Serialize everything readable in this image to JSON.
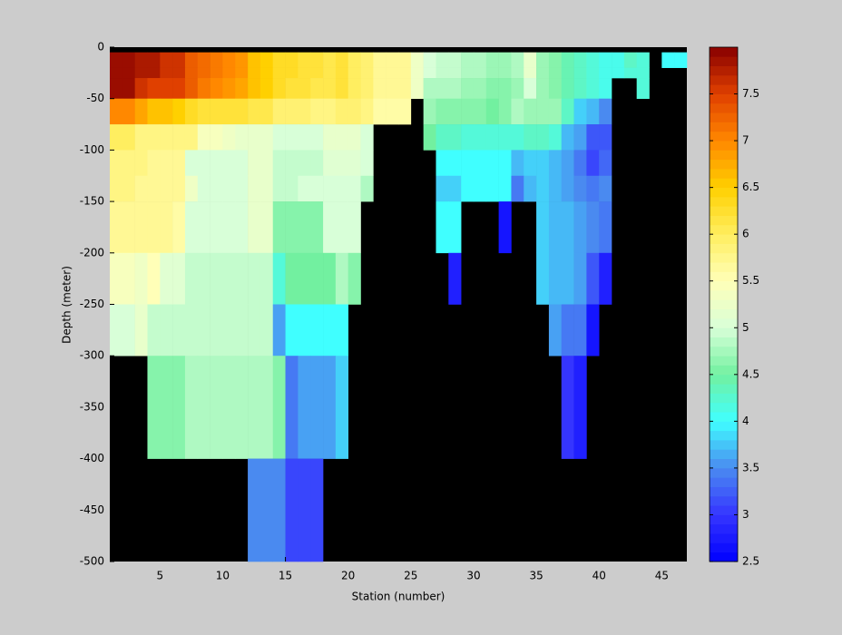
{
  "chart_data": {
    "type": "heatmap",
    "xlabel": "Station (number)",
    "ylabel": "Depth (meter)",
    "xlim": [
      1,
      47
    ],
    "ylim": [
      -500,
      0
    ],
    "xticks": [
      5,
      10,
      15,
      20,
      25,
      30,
      35,
      40,
      45
    ],
    "yticks": [
      0,
      -50,
      -100,
      -150,
      -200,
      -250,
      -300,
      -350,
      -400,
      -450,
      -500
    ],
    "x_edges": [
      1,
      2,
      3,
      4,
      5,
      6,
      7,
      8,
      9,
      10,
      11,
      12,
      13,
      14,
      15,
      16,
      17,
      18,
      19,
      20,
      21,
      22,
      23,
      24,
      25,
      26,
      27,
      28,
      29,
      30,
      31,
      32,
      33,
      34,
      35,
      36,
      37,
      38,
      39,
      40,
      41,
      42,
      43,
      44,
      45,
      46,
      47
    ],
    "depth_edges": [
      -5,
      -20,
      -30,
      -50,
      -75,
      -100,
      -125,
      -150,
      -200,
      -250,
      -300,
      -400,
      -500
    ],
    "z": [
      [
        7.9,
        7.9,
        7.8,
        7.8,
        7.6,
        7.6,
        7.3,
        7.2,
        7.1,
        7.0,
        6.9,
        6.6,
        6.5,
        6.3,
        6.3,
        6.2,
        6.2,
        6.1,
        6.2,
        6.0,
        5.9,
        5.7,
        5.7,
        5.7,
        5.3,
        5.0,
        4.9,
        4.9,
        4.8,
        4.8,
        4.7,
        4.7,
        4.8,
        5.2,
        4.7,
        4.6,
        4.4,
        4.3,
        4.2,
        4.1,
        4.1,
        4.3,
        4.2,
        null,
        4.0,
        4.0
      ],
      [
        7.9,
        7.9,
        7.8,
        7.8,
        7.6,
        7.6,
        7.3,
        7.2,
        7.1,
        7.0,
        6.9,
        6.6,
        6.5,
        6.3,
        6.3,
        6.2,
        6.2,
        6.1,
        6.2,
        6.0,
        5.9,
        5.7,
        5.7,
        5.7,
        5.3,
        5.0,
        4.9,
        4.9,
        4.8,
        4.8,
        4.7,
        4.7,
        4.8,
        5.2,
        4.7,
        4.6,
        4.4,
        4.3,
        4.2,
        4.1,
        4.1,
        4.2,
        4.2,
        null,
        null,
        null
      ],
      [
        7.9,
        7.9,
        7.6,
        7.5,
        7.5,
        7.5,
        7.3,
        7.1,
        7.0,
        6.9,
        6.8,
        6.6,
        6.5,
        6.3,
        6.2,
        6.2,
        6.1,
        6.1,
        6.2,
        6.0,
        5.9,
        5.7,
        5.7,
        5.7,
        5.3,
        4.8,
        4.8,
        4.8,
        4.7,
        4.7,
        4.6,
        4.6,
        4.7,
        5.0,
        4.7,
        4.6,
        4.4,
        4.3,
        4.2,
        4.1,
        null,
        null,
        4.2,
        null,
        null,
        null
      ],
      [
        7.0,
        7.0,
        6.8,
        6.6,
        6.6,
        6.5,
        6.3,
        6.2,
        6.2,
        6.2,
        6.2,
        6.1,
        6.1,
        5.9,
        5.9,
        5.9,
        5.8,
        5.8,
        5.9,
        5.9,
        5.8,
        5.6,
        5.6,
        5.6,
        null,
        4.7,
        4.6,
        4.6,
        4.6,
        4.6,
        4.5,
        4.6,
        4.8,
        4.7,
        4.7,
        4.7,
        4.3,
        3.8,
        3.7,
        3.5,
        null,
        null,
        null,
        null,
        null,
        null
      ],
      [
        6.0,
        6.0,
        5.8,
        5.8,
        5.8,
        5.8,
        5.8,
        5.4,
        5.4,
        5.3,
        5.2,
        5.2,
        5.2,
        5.0,
        5.0,
        5.0,
        5.0,
        5.2,
        5.2,
        5.2,
        5.0,
        null,
        null,
        null,
        null,
        4.5,
        4.3,
        4.3,
        4.2,
        4.2,
        4.2,
        4.2,
        4.2,
        4.3,
        4.3,
        4.2,
        3.7,
        3.6,
        3.2,
        3.2,
        null,
        null,
        null,
        null,
        null,
        null
      ],
      [
        5.8,
        5.8,
        5.8,
        5.7,
        5.7,
        5.7,
        5.0,
        5.0,
        5.0,
        5.0,
        5.0,
        5.2,
        5.2,
        4.9,
        4.9,
        4.9,
        4.9,
        5.1,
        5.1,
        5.1,
        5.0,
        null,
        null,
        null,
        null,
        null,
        4.0,
        4.0,
        4.0,
        4.0,
        4.0,
        4.0,
        3.7,
        3.8,
        3.8,
        3.7,
        3.6,
        3.4,
        3.1,
        3.3,
        null,
        null,
        null,
        null,
        null,
        null
      ],
      [
        5.8,
        5.8,
        5.7,
        5.7,
        5.7,
        5.7,
        5.3,
        5.0,
        5.0,
        5.0,
        5.0,
        5.2,
        5.2,
        4.9,
        4.9,
        5.0,
        5.0,
        5.0,
        5.0,
        5.0,
        4.8,
        null,
        null,
        null,
        null,
        null,
        3.8,
        3.8,
        4.0,
        4.0,
        4.0,
        4.0,
        3.4,
        3.7,
        3.8,
        3.7,
        3.6,
        3.5,
        3.4,
        3.5,
        null,
        null,
        null,
        null,
        null,
        null
      ],
      [
        5.7,
        5.7,
        5.7,
        5.7,
        5.7,
        5.6,
        5.0,
        5.0,
        5.0,
        5.0,
        5.0,
        5.2,
        5.2,
        4.6,
        4.6,
        4.6,
        4.6,
        5.0,
        5.0,
        5.0,
        null,
        null,
        null,
        null,
        null,
        null,
        4.0,
        4.0,
        null,
        null,
        null,
        2.7,
        null,
        null,
        3.8,
        3.7,
        3.7,
        3.6,
        3.5,
        3.4,
        null,
        null,
        null,
        null,
        null,
        null
      ],
      [
        5.4,
        5.4,
        5.3,
        5.5,
        5.1,
        5.1,
        4.9,
        4.9,
        4.9,
        4.9,
        4.9,
        4.9,
        4.9,
        4.2,
        4.5,
        4.5,
        4.5,
        4.5,
        4.8,
        4.6,
        null,
        null,
        null,
        null,
        null,
        null,
        null,
        2.8,
        null,
        null,
        null,
        null,
        null,
        null,
        3.8,
        3.7,
        3.7,
        3.6,
        3.2,
        2.8,
        null,
        null,
        null,
        null,
        null,
        null
      ],
      [
        5.0,
        5.0,
        5.2,
        4.9,
        4.9,
        4.9,
        4.9,
        4.9,
        4.9,
        4.9,
        4.9,
        4.9,
        4.9,
        3.6,
        4.0,
        4.0,
        4.0,
        4.0,
        4.0,
        null,
        null,
        null,
        null,
        null,
        null,
        null,
        null,
        null,
        null,
        null,
        null,
        null,
        null,
        null,
        null,
        3.6,
        3.4,
        3.4,
        2.7,
        null,
        null,
        null,
        null,
        null,
        null,
        null
      ],
      [
        null,
        null,
        null,
        4.6,
        4.6,
        4.6,
        4.8,
        4.8,
        4.8,
        4.8,
        4.8,
        4.8,
        4.8,
        4.6,
        3.4,
        3.6,
        3.6,
        3.6,
        3.8,
        null,
        null,
        null,
        null,
        null,
        null,
        null,
        null,
        null,
        null,
        null,
        null,
        null,
        null,
        null,
        null,
        null,
        3.0,
        2.8,
        null,
        null,
        null,
        null,
        null,
        null,
        null,
        null
      ],
      [
        null,
        null,
        null,
        null,
        null,
        null,
        null,
        null,
        null,
        null,
        null,
        3.5,
        3.5,
        3.5,
        3.1,
        3.1,
        3.1,
        null,
        null,
        null,
        null,
        null,
        null,
        null,
        null,
        null,
        null,
        null,
        null,
        null,
        null,
        null,
        null,
        null,
        null,
        null,
        null,
        null,
        null,
        null,
        null,
        null,
        null,
        null,
        null,
        null
      ]
    ],
    "clim": [
      2.5,
      8
    ],
    "cticks": [
      2.5,
      3,
      3.5,
      4,
      4.5,
      5,
      5.5,
      6,
      6.5,
      7,
      7.5
    ],
    "colormap": [
      "#0000ff",
      "#3535ff",
      "#4a8af0",
      "#40ffff",
      "#72f0a0",
      "#d8ffd8",
      "#ffffb8",
      "#ffee60",
      "#ffd000",
      "#ff8800",
      "#e04000",
      "#880000"
    ],
    "nan_color": "#000000"
  }
}
